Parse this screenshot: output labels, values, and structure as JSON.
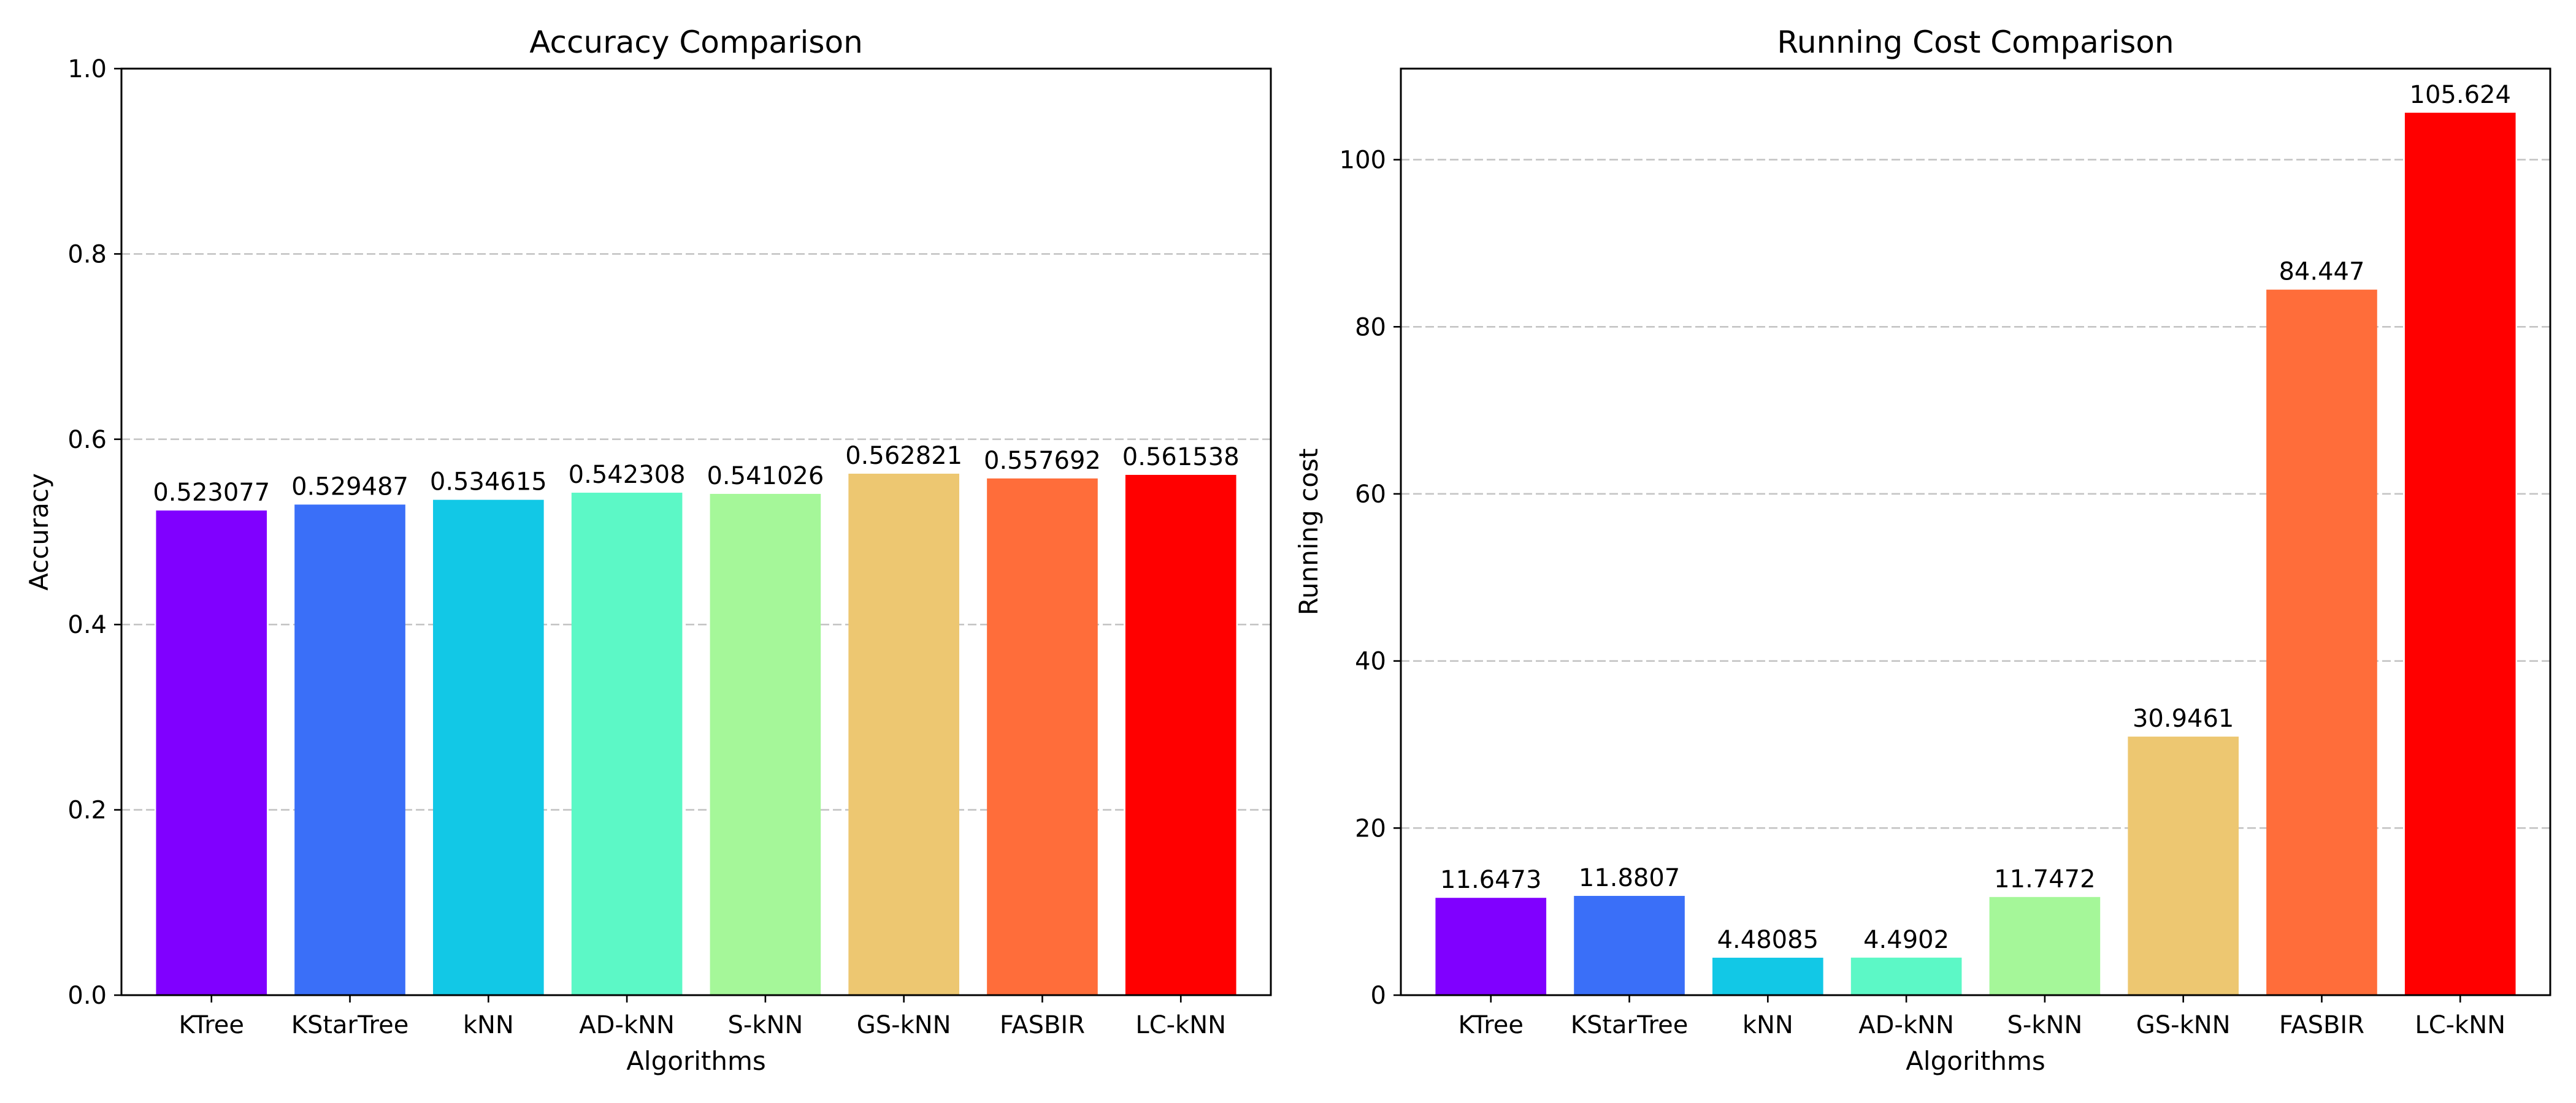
{
  "chart_data": [
    {
      "type": "bar",
      "title": "Accuracy Comparison",
      "xlabel": "Algorithms",
      "ylabel": "Accuracy",
      "ylim": [
        0,
        1.0
      ],
      "yticks": [
        "0.0",
        "0.2",
        "0.4",
        "0.6",
        "0.8",
        "1.0"
      ],
      "ytick_values": [
        0,
        0.2,
        0.4,
        0.6,
        0.8,
        1.0
      ],
      "grid": "y-dashed",
      "categories": [
        "KTree",
        "KStarTree",
        "kNN",
        "AD-kNN",
        "S-kNN",
        "GS-kNN",
        "FASBIR",
        "LC-kNN"
      ],
      "values": [
        0.523077,
        0.529487,
        0.534615,
        0.542308,
        0.541026,
        0.562821,
        0.557692,
        0.561538
      ],
      "value_labels": [
        "0.523077",
        "0.529487",
        "0.534615",
        "0.542308",
        "0.541026",
        "0.562821",
        "0.557692",
        "0.561538"
      ],
      "colors": [
        "#8000ff",
        "#3a6ff8",
        "#12c8e6",
        "#5cf8c6",
        "#a5f799",
        "#edc771",
        "#ff6d3a",
        "#ff0000"
      ]
    },
    {
      "type": "bar",
      "title": "Running Cost Comparison",
      "xlabel": "Algorithms",
      "ylabel": "Running cost",
      "ylim": [
        0,
        110.9
      ],
      "yticks": [
        "0",
        "20",
        "40",
        "60",
        "80",
        "100"
      ],
      "ytick_values": [
        0,
        20,
        40,
        60,
        80,
        100
      ],
      "grid": "y-dashed",
      "categories": [
        "KTree",
        "KStarTree",
        "kNN",
        "AD-kNN",
        "S-kNN",
        "GS-kNN",
        "FASBIR",
        "LC-kNN"
      ],
      "values": [
        11.6473,
        11.8807,
        4.48085,
        4.4902,
        11.7472,
        30.9461,
        84.447,
        105.624
      ],
      "value_labels": [
        "11.6473",
        "11.8807",
        "4.48085",
        "4.4902",
        "11.7472",
        "30.9461",
        "84.447",
        "105.624"
      ],
      "colors": [
        "#8000ff",
        "#3a6ff8",
        "#12c8e6",
        "#5cf8c6",
        "#a5f799",
        "#edc771",
        "#ff6d3a",
        "#ff0000"
      ]
    }
  ]
}
